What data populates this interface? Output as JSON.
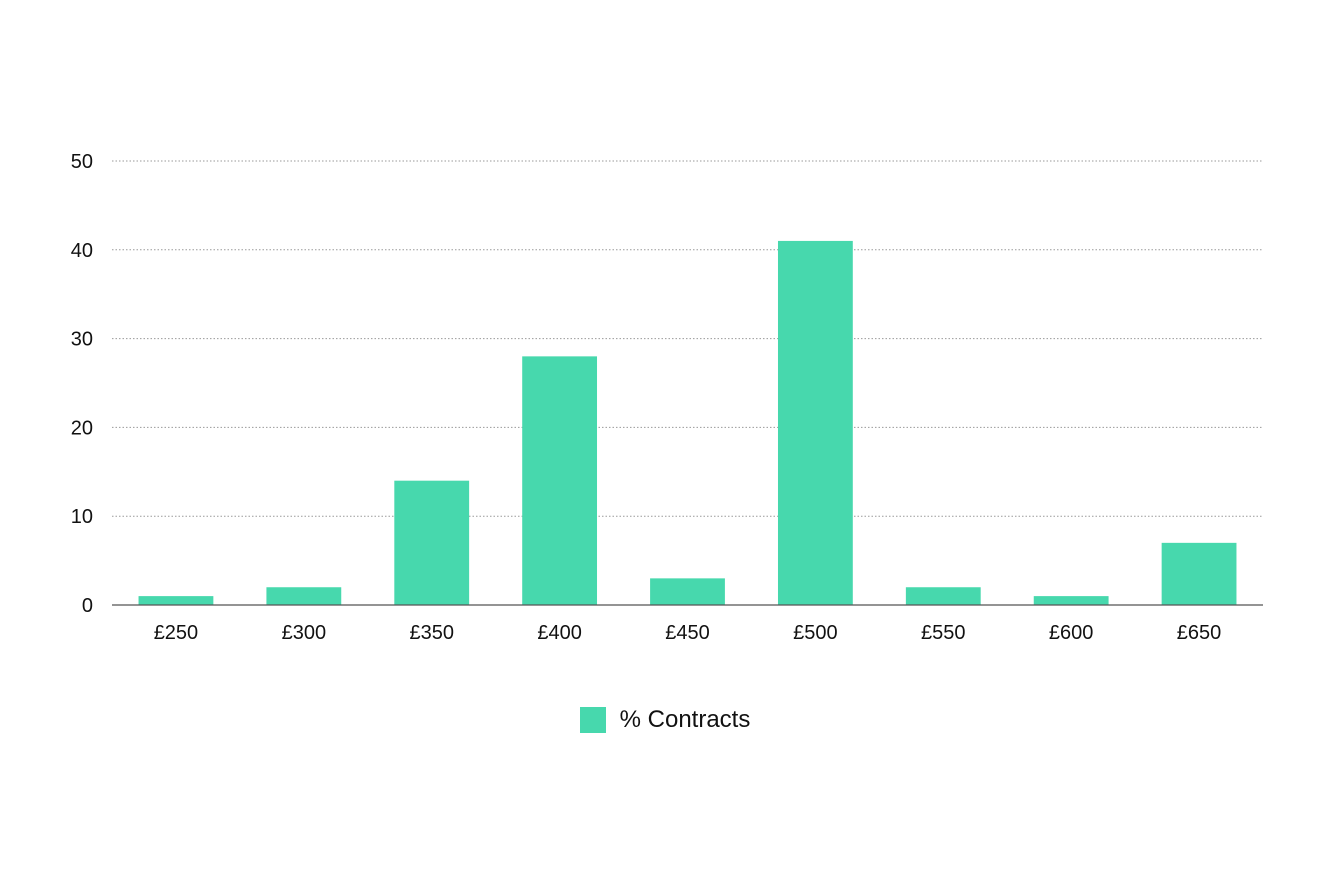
{
  "chart_data": {
    "type": "bar",
    "categories": [
      "£250",
      "£300",
      "£350",
      "£400",
      "£450",
      "£500",
      "£550",
      "£600",
      "£650"
    ],
    "series": [
      {
        "name": "% Contracts",
        "values": [
          1,
          2,
          14,
          28,
          3,
          41,
          2,
          1,
          7
        ]
      }
    ],
    "title": "",
    "xlabel": "",
    "ylabel": "",
    "ylim": [
      0,
      50
    ],
    "yticks": [
      0,
      10,
      20,
      30,
      40,
      50
    ],
    "grid": true,
    "legend": "bottom-center",
    "colors": {
      "bar": "#47D8AD",
      "grid": "#9a9a9a",
      "axis": "#555555"
    }
  }
}
